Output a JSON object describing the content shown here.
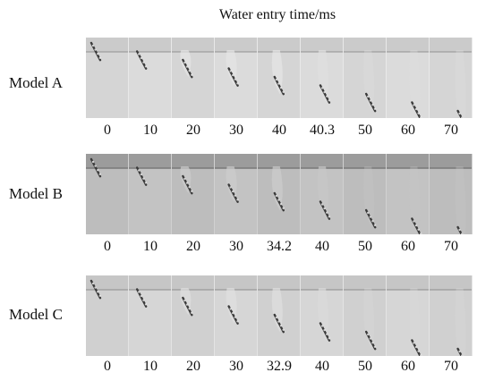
{
  "figure": {
    "title": "Water entry time/ms",
    "rows": [
      {
        "label": "Model A",
        "times": [
          "0",
          "10",
          "20",
          "30",
          "40",
          "40.3",
          "50",
          "60",
          "70"
        ],
        "background": "#d7d7d7"
      },
      {
        "label": "Model B",
        "times": [
          "0",
          "10",
          "20",
          "30",
          "34.2",
          "40",
          "50",
          "60",
          "70"
        ],
        "background": "#bfbfbf"
      },
      {
        "label": "Model C",
        "times": [
          "0",
          "10",
          "20",
          "30",
          "32.9",
          "40",
          "50",
          "60",
          "70"
        ],
        "background": "#d2d2d2"
      }
    ]
  }
}
